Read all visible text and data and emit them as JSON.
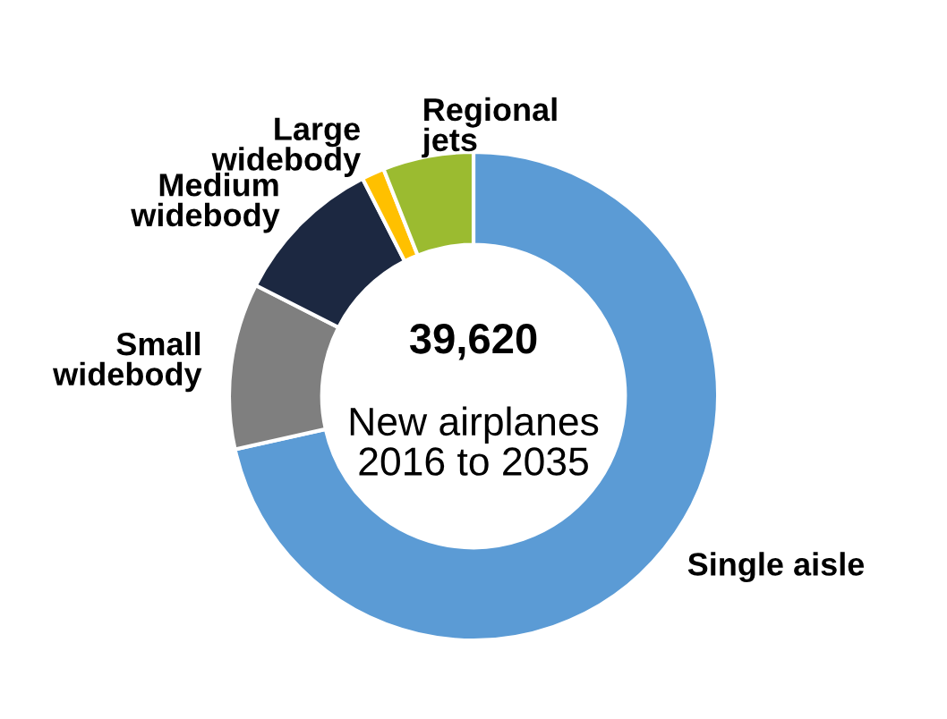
{
  "chart_data": {
    "type": "donut",
    "categories": [
      "Single aisle",
      "Small\nwidebody",
      "Medium\nwidebody",
      "Large\nwidebody",
      "Regional\njets"
    ],
    "values": [
      71.5,
      11,
      10,
      1.5,
      6
    ],
    "colors": [
      "#5b9bd5",
      "#7f7f7f",
      "#1c2841",
      "#ffc000",
      "#9bbb30"
    ],
    "annotations": [
      "39,620",
      "New airplanes\n2016 to 2035"
    ],
    "legend": false
  }
}
